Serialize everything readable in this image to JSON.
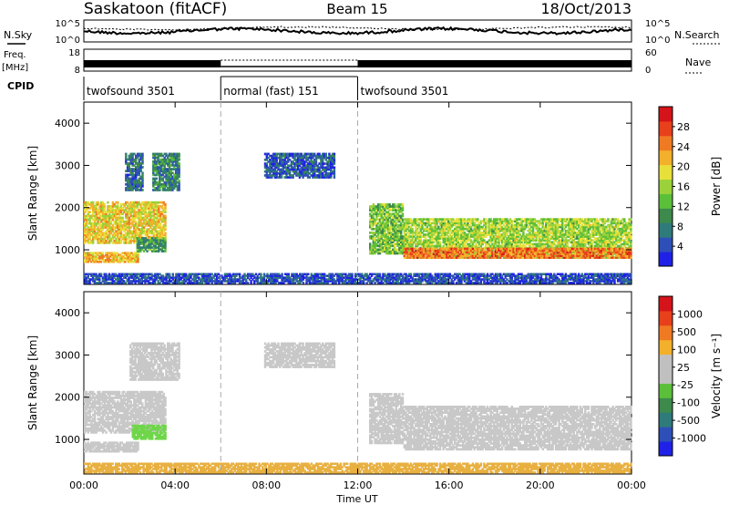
{
  "header": {
    "station": "Saskatoon (fitACF)",
    "beam": "Beam 15",
    "date": "18/Oct/2013"
  },
  "top_panels": {
    "nsky_label": "N.Sky",
    "nsky_ticks": [
      "10^5",
      "10^0"
    ],
    "nsearch_label": "N.Search",
    "nsearch_ticks": [
      "10^5",
      "10^0"
    ],
    "freq_label": "Freq.",
    "freq_unit": "[MHz]",
    "freq_ticks": [
      "18",
      "8"
    ],
    "nave_label": "Nave",
    "nave_ticks": [
      "60",
      "0"
    ],
    "cpid_label": "CPID",
    "cpid_segments": [
      {
        "label": "twofsound 3501",
        "start_hour": 0,
        "end_hour": 6
      },
      {
        "label": "normal (fast) 151",
        "start_hour": 6,
        "end_hour": 12
      },
      {
        "label": "twofsound 3501",
        "start_hour": 12,
        "end_hour": 24
      }
    ]
  },
  "chart_data": [
    {
      "type": "heatmap",
      "parameter": "power",
      "ylabel": "Slant Range [km]",
      "xlabel": "Time UT",
      "x_ticks": [
        "00:00",
        "04:00",
        "08:00",
        "12:00",
        "16:00",
        "20:00",
        "00:00"
      ],
      "xlim_hours": [
        0,
        24
      ],
      "y_ticks": [
        1000,
        2000,
        3000,
        4000
      ],
      "ylim": [
        180,
        4500
      ],
      "colorbar_label": "Power [dB]",
      "colorbar_ticks": [
        4,
        8,
        12,
        16,
        20,
        24,
        28
      ],
      "colorbar_range": [
        0,
        32
      ],
      "colorbar_colors": [
        "#1f22e6",
        "#2e4fb8",
        "#2f7a7a",
        "#3d8a4c",
        "#5cbf3a",
        "#9bd23a",
        "#e8e03a",
        "#f3b02a",
        "#f07a22",
        "#e8401c",
        "#d4141a"
      ],
      "vertical_markers_hours": [
        6,
        12
      ],
      "echo_regions": [
        {
          "t_start": 0.0,
          "t_end": 3.6,
          "r_low": 1150,
          "r_high": 2150,
          "level": 20
        },
        {
          "t_start": 0.0,
          "t_end": 2.4,
          "r_low": 700,
          "r_high": 950,
          "level": 22
        },
        {
          "t_start": 2.3,
          "t_end": 3.6,
          "r_low": 950,
          "r_high": 1300,
          "level": 10
        },
        {
          "t_start": 3.0,
          "t_end": 4.2,
          "r_low": 2400,
          "r_high": 3300,
          "level": 8
        },
        {
          "t_start": 1.8,
          "t_end": 2.6,
          "r_low": 2400,
          "r_high": 3300,
          "level": 6
        },
        {
          "t_start": 7.9,
          "t_end": 11.0,
          "r_low": 2700,
          "r_high": 3300,
          "level": 4
        },
        {
          "t_start": 12.5,
          "t_end": 14.0,
          "r_low": 900,
          "r_high": 2100,
          "level": 14
        },
        {
          "t_start": 14.0,
          "t_end": 24.0,
          "r_low": 800,
          "r_high": 1750,
          "level": 16
        },
        {
          "t_start": 14.0,
          "t_end": 24.0,
          "r_low": 800,
          "r_high": 1050,
          "level": 26
        },
        {
          "t_start": 0.0,
          "t_end": 24.0,
          "r_low": 200,
          "r_high": 450,
          "level": 3
        }
      ]
    },
    {
      "type": "heatmap",
      "parameter": "velocity",
      "ylabel": "Slant Range [km]",
      "xlabel": "Time UT",
      "x_ticks": [
        "00:00",
        "04:00",
        "08:00",
        "12:00",
        "16:00",
        "20:00",
        "00:00"
      ],
      "xlim_hours": [
        0,
        24
      ],
      "y_ticks": [
        1000,
        2000,
        3000,
        4000
      ],
      "ylim": [
        180,
        4500
      ],
      "colorbar_label": "Velocity [m s⁻¹]",
      "colorbar_ticks": [
        "1000",
        "500",
        "100",
        "25",
        "-25",
        "-100",
        "-500",
        "-1000"
      ],
      "colorbar_colors": [
        "#1f22e6",
        "#2e4fb8",
        "#2f7a7a",
        "#3d8a4c",
        "#5cbf3a",
        "#c0c0c0",
        "#c0c0c0",
        "#f3b02a",
        "#f07a22",
        "#e8401c",
        "#d4141a"
      ],
      "vertical_markers_hours": [
        6,
        12
      ],
      "echo_regions": [
        {
          "t_start": 0.0,
          "t_end": 3.6,
          "r_low": 1150,
          "r_high": 2150,
          "color": "#c8c8c8"
        },
        {
          "t_start": 0.0,
          "t_end": 2.4,
          "r_low": 700,
          "r_high": 950,
          "color": "#c8c8c8"
        },
        {
          "t_start": 2.1,
          "t_end": 3.6,
          "r_low": 1000,
          "r_high": 1350,
          "color": "#6fd64a"
        },
        {
          "t_start": 2.0,
          "t_end": 4.2,
          "r_low": 2400,
          "r_high": 3300,
          "color": "#c8c8c8"
        },
        {
          "t_start": 7.9,
          "t_end": 11.0,
          "r_low": 2700,
          "r_high": 3300,
          "color": "#c8c8c8"
        },
        {
          "t_start": 12.5,
          "t_end": 14.0,
          "r_low": 900,
          "r_high": 2100,
          "color": "#c8c8c8"
        },
        {
          "t_start": 14.0,
          "t_end": 24.0,
          "r_low": 750,
          "r_high": 1800,
          "color": "#c8c8c8"
        },
        {
          "t_start": 0.0,
          "t_end": 24.0,
          "r_low": 200,
          "r_high": 450,
          "color": "#e8b040"
        }
      ]
    }
  ]
}
